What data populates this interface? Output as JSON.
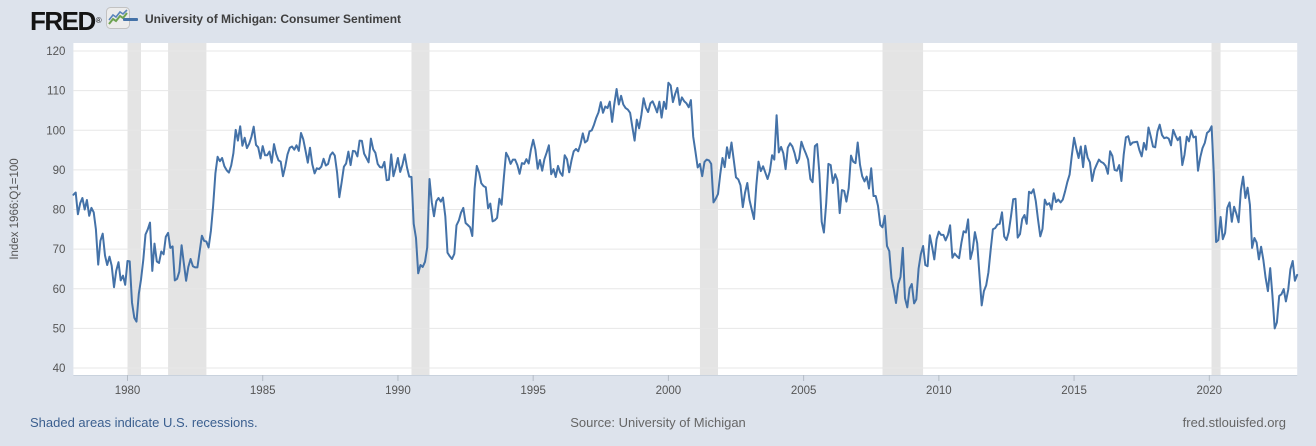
{
  "colors": {
    "background": "#dde3ec",
    "plot_background": "#ffffff",
    "line_color": "#4472a8",
    "recession_band": "#e4e4e4",
    "gridline": "#e7e7e7",
    "axis_line": "#c9d2dd",
    "tick_mark": "#b4bcc6",
    "axis_text": "#555555",
    "link_text": "#3b5f8f",
    "source_text": "#666666",
    "logo_text_color": "#141414",
    "logo_icon_green": "#6fa352",
    "logo_icon_blue": "#4a7ab5"
  },
  "header": {
    "logo_text": "FRED",
    "logo_reg": "®",
    "legend": {
      "label": "University of Michigan: Consumer Sentiment"
    }
  },
  "footer": {
    "recessions_note": "Shaded areas indicate U.S. recessions.",
    "source": "Source: University of Michigan",
    "site": "fred.stlouisfed.org"
  },
  "chart_data": {
    "type": "line",
    "title": "University of Michigan: Consumer Sentiment",
    "xlabel": "",
    "ylabel": "Index 1966:Q1=100",
    "ylim": [
      40,
      120
    ],
    "yticks": [
      40,
      50,
      60,
      70,
      80,
      90,
      100,
      110,
      120
    ],
    "xticks": [
      1980,
      1985,
      1990,
      1995,
      2000,
      2005,
      2010,
      2015,
      2020
    ],
    "x_start": 1978.0,
    "x_end": 2023.25,
    "frequency": "monthly",
    "grid": true,
    "legend_position": "top-left",
    "recessions": [
      [
        1980.0,
        1980.5
      ],
      [
        1981.5,
        1982.917
      ],
      [
        1990.5,
        1991.167
      ],
      [
        2001.167,
        2001.833
      ],
      [
        2007.917,
        2009.417
      ],
      [
        2020.083,
        2020.417
      ]
    ],
    "series": [
      {
        "name": "University of Michigan: Consumer Sentiment",
        "values_by_year": {
          "1978": [
            83.7,
            84.3,
            78.8,
            81.6,
            82.9,
            80.0,
            82.4,
            78.4,
            80.4,
            79.3,
            75.0,
            66.1
          ],
          "1979": [
            72.1,
            73.9,
            68.4,
            66.0,
            68.1,
            65.8,
            60.4,
            64.5,
            66.7,
            62.1,
            63.3,
            61.0
          ],
          "1980": [
            67.0,
            66.9,
            56.5,
            52.7,
            51.7,
            58.7,
            62.3,
            67.3,
            73.7,
            75.0,
            76.7,
            64.5
          ],
          "1981": [
            71.4,
            66.9,
            66.5,
            69.4,
            68.7,
            73.1,
            74.1,
            70.3,
            70.7,
            62.1,
            62.5,
            64.3
          ],
          "1982": [
            71.0,
            66.5,
            62.0,
            65.5,
            67.5,
            65.7,
            65.4,
            65.4,
            69.3,
            73.4,
            72.1,
            71.9
          ],
          "1983": [
            70.4,
            74.6,
            80.8,
            89.1,
            93.3,
            92.2,
            93.0,
            90.9,
            89.9,
            89.3,
            91.1,
            94.2
          ],
          "1984": [
            100.1,
            97.4,
            101.0,
            96.1,
            98.1,
            95.5,
            96.6,
            98.3,
            100.9,
            96.3,
            95.7,
            92.9
          ],
          "1985": [
            96.0,
            93.7,
            93.7,
            94.6,
            91.8,
            96.5,
            94.0,
            92.4,
            92.1,
            88.4,
            90.9,
            93.9
          ],
          "1986": [
            95.6,
            95.9,
            95.1,
            96.2,
            94.8,
            99.3,
            97.7,
            94.9,
            91.8,
            95.6,
            91.4,
            89.1
          ],
          "1987": [
            90.4,
            90.2,
            90.8,
            92.8,
            91.1,
            91.5,
            93.7,
            94.4,
            93.6,
            89.3,
            83.1,
            86.8
          ],
          "1988": [
            90.8,
            91.6,
            94.6,
            91.2,
            94.8,
            94.7,
            93.4,
            97.4,
            97.3,
            94.1,
            93.0,
            91.9
          ],
          "1989": [
            97.9,
            95.2,
            94.3,
            91.5,
            90.7,
            90.6,
            92.0,
            87.4,
            87.5,
            93.9,
            88.4,
            90.5
          ],
          "1990": [
            93.0,
            89.5,
            91.3,
            93.9,
            90.6,
            88.3,
            88.2,
            76.4,
            72.8,
            63.9,
            66.0,
            65.5
          ],
          "1991": [
            66.8,
            70.4,
            87.7,
            81.8,
            78.3,
            82.1,
            82.9,
            82.0,
            83.0,
            78.3,
            69.1,
            68.2
          ],
          "1992": [
            67.5,
            68.8,
            76.0,
            77.2,
            79.2,
            80.4,
            76.6,
            76.1,
            75.5,
            73.3,
            85.3,
            91.0
          ],
          "1993": [
            89.3,
            86.6,
            85.9,
            85.6,
            80.3,
            81.5,
            77.0,
            77.3,
            77.9,
            82.7,
            81.2,
            88.2
          ],
          "1994": [
            94.3,
            93.2,
            91.5,
            92.6,
            92.6,
            91.2,
            89.0,
            91.7,
            91.5,
            92.7,
            91.6,
            95.1
          ],
          "1995": [
            97.6,
            95.1,
            90.3,
            92.5,
            89.8,
            92.7,
            94.4,
            96.2,
            88.9,
            90.2,
            88.2,
            91.0
          ],
          "1996": [
            89.3,
            88.5,
            93.7,
            92.7,
            89.4,
            92.4,
            94.7,
            95.3,
            94.7,
            96.5,
            99.2,
            96.9
          ],
          "1997": [
            97.4,
            99.7,
            100.0,
            101.4,
            103.2,
            104.5,
            107.1,
            104.4,
            106.0,
            105.6,
            107.2,
            102.1
          ],
          "1998": [
            106.6,
            110.4,
            106.5,
            108.7,
            106.5,
            105.6,
            105.2,
            104.4,
            100.9,
            97.4,
            102.7,
            100.5
          ],
          "1999": [
            103.9,
            108.1,
            105.7,
            104.6,
            106.8,
            107.3,
            106.0,
            104.5,
            107.2,
            103.2,
            107.2,
            105.4
          ],
          "2000": [
            112.0,
            111.3,
            107.1,
            109.2,
            110.7,
            106.4,
            108.3,
            107.3,
            106.8,
            105.8,
            107.6,
            98.4
          ],
          "2001": [
            94.7,
            90.6,
            91.5,
            88.4,
            92.0,
            92.6,
            92.4,
            91.5,
            81.8,
            82.7,
            83.9,
            88.8
          ],
          "2002": [
            93.0,
            90.7,
            95.7,
            93.0,
            96.9,
            92.4,
            88.1,
            87.6,
            86.1,
            80.6,
            84.2,
            86.7
          ],
          "2003": [
            82.4,
            79.9,
            77.6,
            86.0,
            92.1,
            89.7,
            90.9,
            89.3,
            87.7,
            89.6,
            93.7,
            92.6
          ],
          "2004": [
            103.8,
            94.4,
            95.8,
            94.2,
            90.2,
            95.6,
            96.7,
            95.9,
            94.2,
            91.7,
            92.8,
            97.1
          ],
          "2005": [
            95.5,
            94.1,
            92.6,
            87.7,
            86.9,
            96.0,
            96.5,
            89.1,
            76.9,
            74.2,
            81.6,
            91.5
          ],
          "2006": [
            91.2,
            86.7,
            88.9,
            87.4,
            79.1,
            84.9,
            84.7,
            82.0,
            85.4,
            93.6,
            92.1,
            91.7
          ],
          "2007": [
            96.9,
            91.3,
            88.4,
            87.1,
            88.3,
            85.3,
            90.4,
            83.4,
            83.4,
            80.9,
            76.1,
            75.5
          ],
          "2008": [
            78.4,
            70.8,
            69.5,
            62.6,
            59.8,
            56.4,
            61.2,
            63.0,
            70.3,
            57.6,
            55.3,
            60.1
          ],
          "2009": [
            61.2,
            56.3,
            57.3,
            65.1,
            68.7,
            70.8,
            66.0,
            65.7,
            73.5,
            70.6,
            67.4,
            72.5
          ],
          "2010": [
            74.4,
            73.6,
            73.6,
            72.2,
            73.6,
            76.0,
            67.8,
            68.9,
            68.2,
            67.7,
            71.6,
            74.5
          ],
          "2011": [
            74.2,
            77.5,
            67.5,
            69.8,
            74.3,
            71.5,
            63.7,
            55.8,
            59.4,
            60.9,
            64.1,
            69.9
          ],
          "2012": [
            75.0,
            75.3,
            76.2,
            76.4,
            79.3,
            73.2,
            72.3,
            74.3,
            78.3,
            82.6,
            82.7,
            72.9
          ],
          "2013": [
            73.8,
            77.6,
            78.6,
            76.4,
            84.5,
            84.1,
            85.1,
            82.1,
            77.5,
            73.2,
            75.1,
            82.5
          ],
          "2014": [
            81.2,
            81.6,
            80.0,
            84.1,
            81.9,
            82.5,
            81.8,
            82.5,
            84.6,
            86.9,
            88.8,
            93.6
          ],
          "2015": [
            98.1,
            95.4,
            93.0,
            95.9,
            90.7,
            96.1,
            93.1,
            91.9,
            87.2,
            90.0,
            91.3,
            92.6
          ],
          "2016": [
            92.0,
            91.7,
            91.0,
            89.0,
            94.7,
            93.5,
            90.0,
            89.8,
            91.2,
            87.2,
            93.8,
            98.2
          ],
          "2017": [
            98.5,
            96.3,
            96.9,
            97.0,
            97.1,
            95.0,
            93.4,
            96.8,
            95.1,
            100.7,
            98.5,
            95.9
          ],
          "2018": [
            95.7,
            99.7,
            101.4,
            98.8,
            98.0,
            98.2,
            97.9,
            96.2,
            100.1,
            98.6,
            97.5,
            98.3
          ],
          "2019": [
            91.2,
            93.8,
            98.4,
            97.2,
            100.0,
            98.2,
            98.4,
            89.8,
            93.2,
            95.5,
            96.8,
            99.3
          ],
          "2020": [
            99.8,
            101.0,
            89.1,
            71.8,
            72.3,
            78.1,
            72.5,
            74.1,
            80.4,
            81.8,
            76.9,
            80.7
          ],
          "2021": [
            79.0,
            76.8,
            84.9,
            88.3,
            82.9,
            85.5,
            81.2,
            70.3,
            72.8,
            71.7,
            67.4,
            70.6
          ],
          "2022": [
            67.2,
            62.8,
            59.4,
            65.2,
            58.4,
            50.0,
            51.5,
            58.2,
            58.6,
            59.9,
            56.8,
            59.7
          ],
          "2023": [
            64.9,
            67.0,
            62.0,
            63.5
          ]
        }
      }
    ]
  }
}
